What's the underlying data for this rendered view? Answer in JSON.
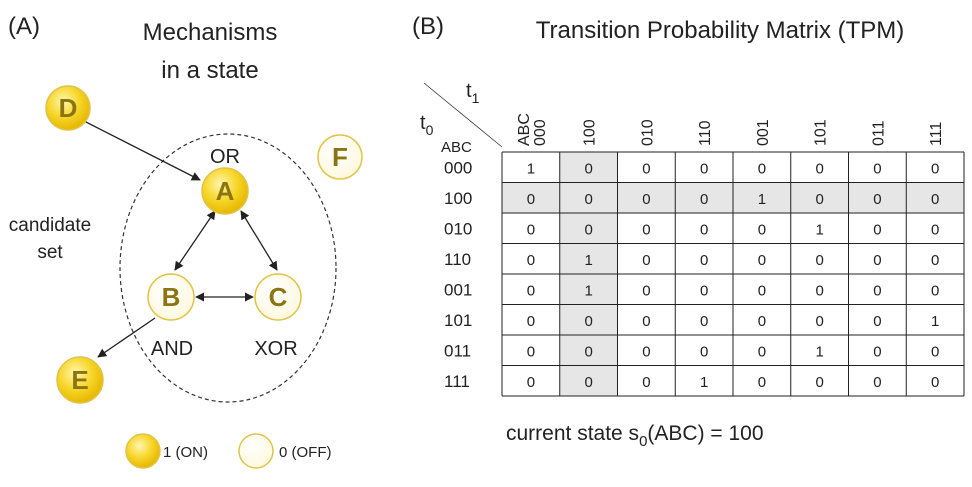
{
  "panel_a": {
    "label": "(A)",
    "title_line1": "Mechanisms",
    "title_line2": "in a state",
    "candidate_line1": "candidate",
    "candidate_line2": "set",
    "nodes": [
      {
        "id": "D",
        "letter": "D",
        "on": true
      },
      {
        "id": "A",
        "letter": "A",
        "on": true,
        "gate": "OR"
      },
      {
        "id": "F",
        "letter": "F",
        "on": false
      },
      {
        "id": "B",
        "letter": "B",
        "on": false,
        "gate": "AND"
      },
      {
        "id": "C",
        "letter": "C",
        "on": false,
        "gate": "XOR"
      },
      {
        "id": "E",
        "letter": "E",
        "on": true
      }
    ],
    "legend": {
      "on_label": "1 (ON)",
      "off_label": "0 (OFF)"
    }
  },
  "panel_b": {
    "label": "(B)",
    "title": "Transition Probability Matrix (TPM)",
    "corner_t1": "t",
    "corner_t1_sub": "1",
    "corner_t0": "t",
    "corner_t0_sub": "0",
    "corner_abc": "ABC",
    "col_headers": [
      "ABC 000",
      "100",
      "010",
      "110",
      "001",
      "101",
      "011",
      "111"
    ],
    "row_headers": [
      "000",
      "100",
      "010",
      "110",
      "001",
      "101",
      "011",
      "111"
    ],
    "matrix": [
      [
        1,
        0,
        0,
        0,
        0,
        0,
        0,
        0
      ],
      [
        0,
        0,
        0,
        0,
        1,
        0,
        0,
        0
      ],
      [
        0,
        0,
        0,
        0,
        0,
        1,
        0,
        0
      ],
      [
        0,
        1,
        0,
        0,
        0,
        0,
        0,
        0
      ],
      [
        0,
        1,
        0,
        0,
        0,
        0,
        0,
        0
      ],
      [
        0,
        0,
        0,
        0,
        0,
        0,
        0,
        1
      ],
      [
        0,
        0,
        0,
        0,
        0,
        1,
        0,
        0
      ],
      [
        0,
        0,
        0,
        1,
        0,
        0,
        0,
        0
      ]
    ],
    "highlight_row_index": 1,
    "highlight_col_index": 1,
    "highlight_color": "#e6e6e6",
    "current_state_prefix": "current state s",
    "current_state_sub": "0",
    "current_state_suffix": "(ABC) = 100"
  },
  "colors": {
    "node_on": "#f5d21a",
    "node_off": "#fffef2",
    "node_stroke": "#e0c44a",
    "letter": "#8c7410"
  }
}
